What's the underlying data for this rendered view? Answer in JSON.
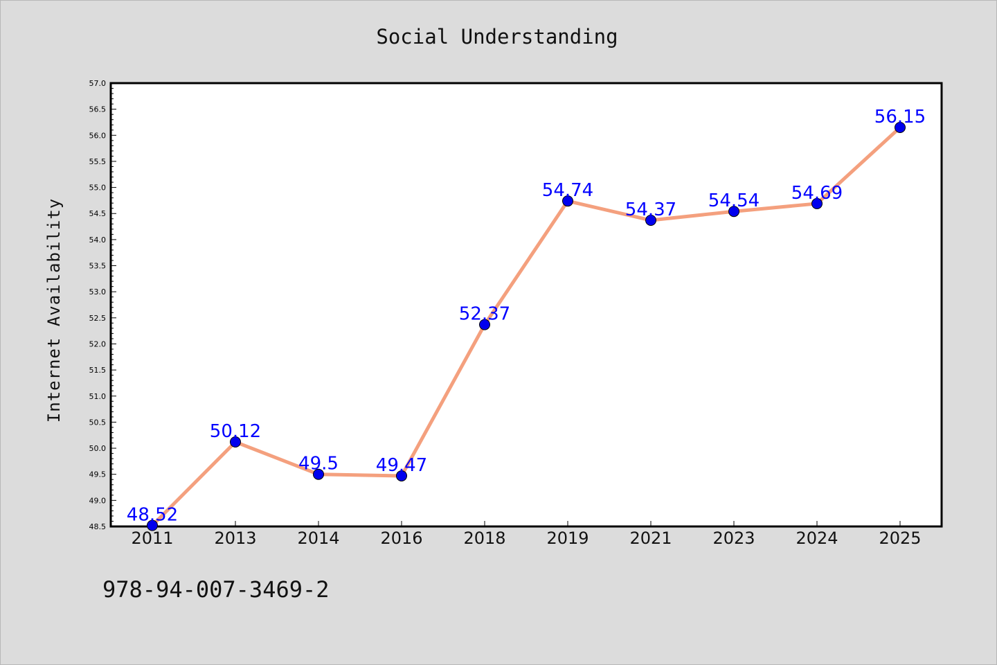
{
  "chart_data": {
    "type": "line",
    "title": "Social Understanding",
    "xlabel": "",
    "ylabel": "Internet Availability",
    "categories": [
      "2011",
      "2013",
      "2014",
      "2016",
      "2018",
      "2019",
      "2021",
      "2023",
      "2024",
      "2025"
    ],
    "series": [
      {
        "values": [
          48.52,
          50.12,
          49.5,
          49.47,
          52.37,
          54.74,
          54.37,
          54.54,
          54.69,
          56.15
        ]
      }
    ],
    "data_labels": [
      "48.52",
      "50.12",
      "49.5",
      "49.47",
      "52.37",
      "54.74",
      "54.37",
      "54.54",
      "54.69",
      "56.15"
    ],
    "ylim": [
      48.5,
      57.0
    ],
    "yticks": [
      "48.5",
      "49.0",
      "49.5",
      "50.0",
      "50.5",
      "51.0",
      "51.5",
      "52.0",
      "52.5",
      "53.0",
      "53.5",
      "54.0",
      "54.5",
      "55.0",
      "55.5",
      "56.0",
      "56.5",
      "57.0"
    ],
    "grid": false,
    "legend": "none",
    "colors": {
      "line": "#f4a07e",
      "marker": "#0000ee",
      "data_label": "#0000ff",
      "background": "#dcdcdc",
      "plot_area": "#ffffff"
    }
  },
  "footer": {
    "isbn": "978-94-007-3469-2"
  }
}
